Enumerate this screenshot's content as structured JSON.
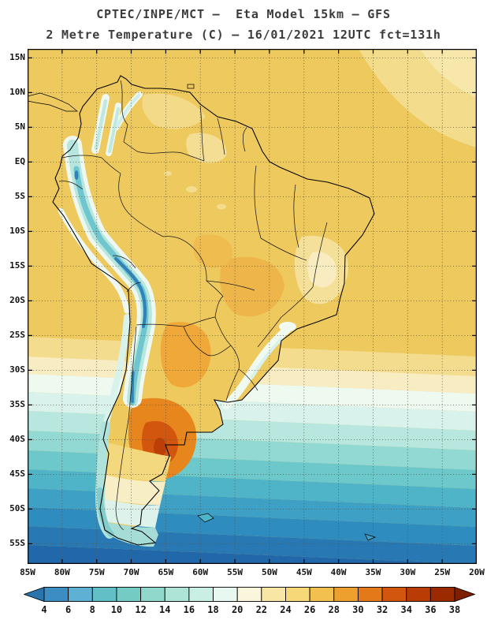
{
  "header": {
    "line1": "CPTEC/INPE/MCT —  Eta Model 15km — GFS",
    "line2": "2 Metre Temperature (C) — 16/01/2021 12UTC fct=131h"
  },
  "map": {
    "x_axis": {
      "labels": [
        "85W",
        "80W",
        "75W",
        "70W",
        "65W",
        "60W",
        "55W",
        "50W",
        "45W",
        "40W",
        "35W",
        "30W",
        "25W",
        "20W"
      ]
    },
    "y_axis": {
      "labels": [
        "15N",
        "10N",
        "5N",
        "EQ",
        "5S",
        "10S",
        "15S",
        "20S",
        "25S",
        "30S",
        "35S",
        "40S",
        "45S",
        "50S",
        "55S"
      ]
    },
    "grid": {
      "lon_step_deg": 5,
      "lat_step_deg": 5
    }
  },
  "colorbar": {
    "tick_labels": [
      "4",
      "6",
      "8",
      "10",
      "12",
      "14",
      "16",
      "18",
      "20",
      "22",
      "24",
      "26",
      "28",
      "30",
      "32",
      "34",
      "36",
      "38"
    ],
    "colors": [
      "#2a74ae",
      "#3c8ec2",
      "#5fb1d4",
      "#62bfc6",
      "#74cbc4",
      "#90d8cc",
      "#aee4d8",
      "#c9efe4",
      "#e6f8ef",
      "#faf6dc",
      "#f8e7a4",
      "#f6d878",
      "#f2c04e",
      "#eda02e",
      "#e4791a",
      "#d2560e",
      "#b93c05",
      "#9c2a00",
      "#7e1f00"
    ]
  },
  "chart_data": {
    "type": "heatmap",
    "title": "2 Metre Temperature (C)",
    "source": "CPTEC/INPE/MCT",
    "model": "Eta Model 15km",
    "boundary_driver": "GFS",
    "valid_time": "16/01/2021 12UTC",
    "forecast": "fct=131h",
    "x_range": [
      "85W",
      "20W"
    ],
    "y_range": [
      "15N",
      "55S"
    ],
    "colorbar_values_c": [
      4,
      6,
      8,
      10,
      12,
      14,
      16,
      18,
      20,
      22,
      24,
      26,
      28,
      30,
      32,
      34,
      36,
      38
    ],
    "colorbar_colors": [
      "#2a74ae",
      "#3c8ec2",
      "#5fb1d4",
      "#62bfc6",
      "#74cbc4",
      "#90d8cc",
      "#aee4d8",
      "#c9efe4",
      "#e6f8ef",
      "#faf6dc",
      "#f8e7a4",
      "#f6d878",
      "#f2c04e",
      "#eda02e",
      "#e4791a",
      "#d2560e",
      "#b93c05",
      "#9c2a00",
      "#7e1f00"
    ],
    "features": [
      {
        "region": "Tropical South America and equatorial oceans",
        "temp_c": "26-28"
      },
      {
        "region": "Northeast/top-right tropical Atlantic",
        "temp_c": "24-26"
      },
      {
        "region": "Central Brazil / Chaco interior",
        "temp_c": "28-30"
      },
      {
        "region": "Central Argentina hot core (~38S, 66W)",
        "temp_c": "32-38"
      },
      {
        "region": "Andes cordillera strip (Ecuador to 35S)",
        "temp_c": "4-14"
      },
      {
        "region": "East Brazil highlands",
        "temp_c": "20-24"
      },
      {
        "region": "South Atlantic / Pacific near 35S",
        "temp_c": "16-20"
      },
      {
        "region": "Ocean bands 40S-50S",
        "temp_c": "10-16"
      },
      {
        "region": "Patagonia south of 45S",
        "temp_c": "8-16"
      },
      {
        "region": "Tierra del Fuego",
        "temp_c": "8-12"
      },
      {
        "region": "Southern Ocean near 55S",
        "temp_c": "4-8"
      }
    ]
  }
}
